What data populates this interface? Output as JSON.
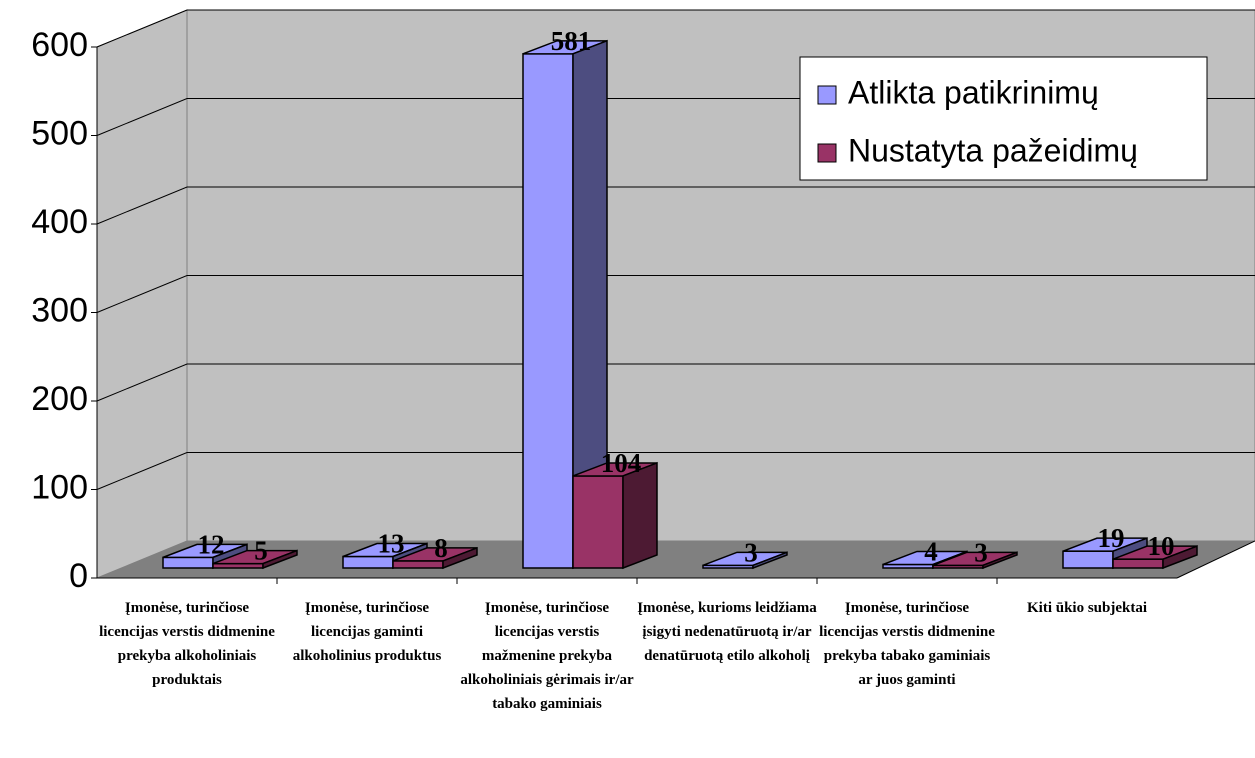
{
  "chart_data": {
    "type": "bar3d",
    "categories": [
      "Įmonėse, turinčiose licencijas verstis didmenine prekyba alkoholiniais produktais",
      "Įmonėse, turinčiose licencijas gaminti alkoholinius produktus",
      "Įmonėse, turinčiose licencijas verstis mažmenine prekyba alkoholiniais gėrimais ir/ar tabako gaminiais",
      "Įmonėse, kurioms leidžiama įsigyti nedenatūruotą ir/ar denatūruotą etilo alkoholį",
      "Įmonėse, turinčiose licencijas verstis didmenine prekyba tabako gaminiais ar juos gaminti",
      "Kiti ūkio subjektai"
    ],
    "series": [
      {
        "name": "Atlikta patikrinimų",
        "color": "#9999ff",
        "values": [
          12,
          13,
          581,
          3,
          4,
          19
        ]
      },
      {
        "name": "Nustatyta pažeidimų",
        "color": "#993366",
        "values": [
          5,
          8,
          104,
          null,
          3,
          10
        ]
      }
    ],
    "ylim": [
      0,
      600
    ],
    "yticks": [
      0,
      100,
      200,
      300,
      400,
      500,
      600
    ],
    "grid": true,
    "legend": "upper right"
  }
}
